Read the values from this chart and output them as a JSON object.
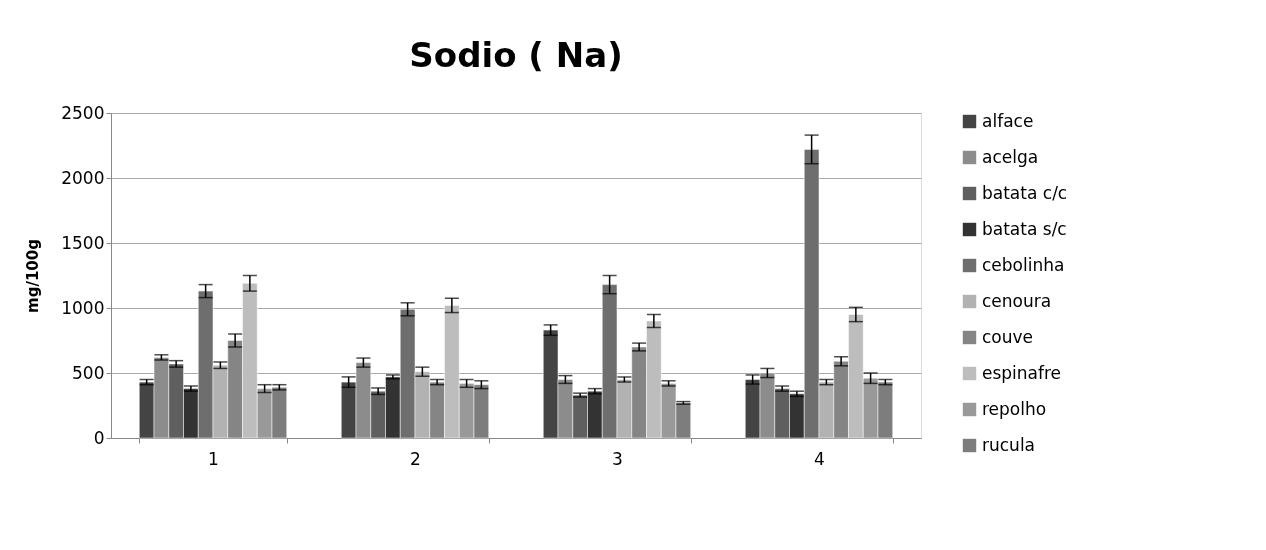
{
  "chart_data": {
    "type": "bar",
    "title": "Sodio ( Na)",
    "ylabel": "mg/100g",
    "categories": [
      "1",
      "2",
      "3",
      "4"
    ],
    "ylim": [
      0,
      2500
    ],
    "yticks": [
      0,
      500,
      1000,
      1500,
      2000,
      2500
    ],
    "grid": "y",
    "legend": "right",
    "series": [
      {
        "name": "alface",
        "color": "#444444",
        "values": [
          430,
          430,
          830,
          450
        ],
        "errors": [
          20,
          40,
          40,
          35
        ]
      },
      {
        "name": "acelga",
        "color": "#8c8c8c",
        "values": [
          620,
          580,
          450,
          500
        ],
        "errors": [
          20,
          35,
          30,
          35
        ]
      },
      {
        "name": "batata c/c",
        "color": "#5f5f5f",
        "values": [
          570,
          360,
          330,
          380
        ],
        "errors": [
          25,
          25,
          15,
          20
        ]
      },
      {
        "name": "batata s/c",
        "color": "#333333",
        "values": [
          380,
          470,
          360,
          340
        ],
        "errors": [
          20,
          15,
          20,
          20
        ]
      },
      {
        "name": "cebolinha",
        "color": "#6e6e6e",
        "values": [
          1130,
          990,
          1180,
          2220
        ],
        "errors": [
          50,
          50,
          70,
          110
        ]
      },
      {
        "name": "cenoura",
        "color": "#b2b2b2",
        "values": [
          560,
          510,
          450,
          430
        ],
        "errors": [
          25,
          35,
          20,
          20
        ]
      },
      {
        "name": "couve",
        "color": "#858585",
        "values": [
          750,
          430,
          700,
          590
        ],
        "errors": [
          50,
          20,
          30,
          35
        ]
      },
      {
        "name": "espinafre",
        "color": "#bdbdbd",
        "values": [
          1190,
          1020,
          900,
          950
        ],
        "errors": [
          60,
          55,
          50,
          55
        ]
      },
      {
        "name": "repolho",
        "color": "#999999",
        "values": [
          380,
          420,
          420,
          460
        ],
        "errors": [
          30,
          30,
          20,
          40
        ]
      },
      {
        "name": "rucula",
        "color": "#7d7d7d",
        "values": [
          390,
          410,
          270,
          430
        ],
        "errors": [
          20,
          30,
          10,
          20
        ]
      }
    ]
  }
}
